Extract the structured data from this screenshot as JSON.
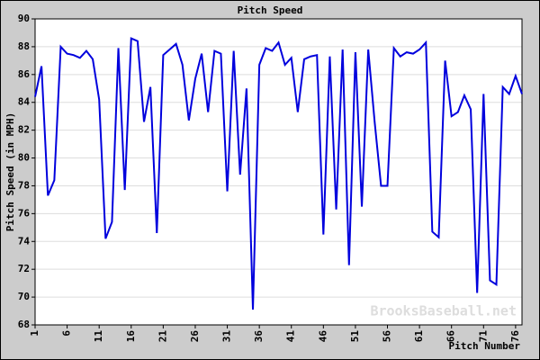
{
  "chart_data": {
    "type": "line",
    "title": "Pitch Speed",
    "x_label": "Pitch Number",
    "y_label": "Pitch Speed (in MPH)",
    "annotation": "BrooksBaseball.net",
    "x": [
      1,
      2,
      3,
      4,
      5,
      6,
      7,
      8,
      9,
      10,
      11,
      12,
      13,
      14,
      15,
      16,
      17,
      18,
      19,
      20,
      21,
      22,
      23,
      24,
      25,
      26,
      27,
      28,
      29,
      30,
      31,
      32,
      33,
      34,
      35,
      36,
      37,
      38,
      39,
      40,
      41,
      42,
      43,
      44,
      45,
      46,
      47,
      48,
      49,
      50,
      51,
      52,
      53,
      54,
      55,
      56,
      57,
      58,
      59,
      60,
      61,
      62,
      63,
      64,
      65,
      66,
      67,
      68,
      69,
      70,
      71,
      72,
      73,
      74,
      75,
      76,
      77
    ],
    "values": [
      84.4,
      86.6,
      77.3,
      78.4,
      88.0,
      87.5,
      87.4,
      87.2,
      87.7,
      87.1,
      84.2,
      74.2,
      75.4,
      87.9,
      77.7,
      88.6,
      88.4,
      82.6,
      85.1,
      74.6,
      87.4,
      87.8,
      88.2,
      86.7,
      82.7,
      85.7,
      87.5,
      83.3,
      87.7,
      87.5,
      77.6,
      87.7,
      78.8,
      85.0,
      69.1,
      86.7,
      87.9,
      87.7,
      88.3,
      86.7,
      87.2,
      83.3,
      87.1,
      87.3,
      87.4,
      74.5,
      87.3,
      76.3,
      87.8,
      72.3,
      87.6,
      76.5,
      87.8,
      82.6,
      78.0,
      78.0,
      87.9,
      87.3,
      87.6,
      87.5,
      87.8,
      88.3,
      74.7,
      74.3,
      87.0,
      83.0,
      83.3,
      84.5,
      83.5,
      70.3,
      84.6,
      71.2,
      70.9,
      85.1,
      84.6,
      85.9,
      84.6
    ],
    "color": "#0000dd",
    "xlim": [
      1,
      77
    ],
    "xticks": [
      1,
      6,
      11,
      16,
      21,
      26,
      31,
      36,
      41,
      46,
      51,
      56,
      61,
      66,
      71,
      76
    ],
    "ylim": [
      68,
      90
    ],
    "yticks": [
      68,
      70,
      72,
      74,
      76,
      78,
      80,
      82,
      84,
      86,
      88,
      90
    ],
    "grid": true
  }
}
